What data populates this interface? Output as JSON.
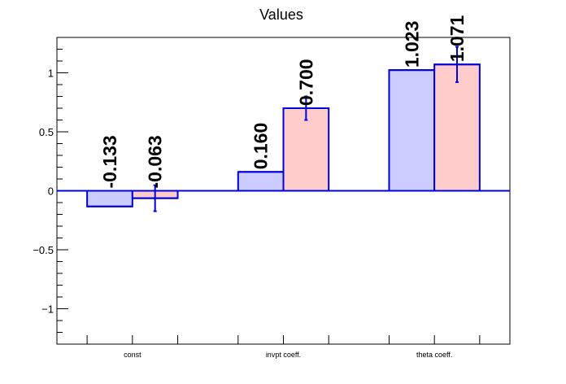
{
  "chart_data": {
    "type": "bar",
    "title": "Values",
    "xlabel": "",
    "ylabel": "",
    "categories": [
      "const",
      "invpt coeff.",
      "theta coeff."
    ],
    "series": [
      {
        "values": [
          -0.133,
          0.16,
          1.023
        ],
        "labels": [
          "-0.133",
          "0.160",
          "1.023"
        ],
        "errors": [
          null,
          null,
          null
        ],
        "fill": "#ccccff",
        "stroke": "#0000dd"
      },
      {
        "values": [
          -0.063,
          0.7,
          1.071
        ],
        "labels": [
          "-0.063",
          "0.700",
          "1.071"
        ],
        "errors": [
          0.11,
          0.1,
          0.15
        ],
        "fill": "#ffcccc",
        "stroke": "#0000dd"
      }
    ],
    "ylim": [
      -1.3,
      1.3
    ],
    "y_ticks": [
      -1,
      -0.5,
      0,
      0.5,
      1
    ],
    "y_tick_labels": [
      "−1",
      "−0.5",
      "0",
      "0.5",
      "1"
    ],
    "zero_line_color": "#0000dd",
    "error_bar_color": "#0000dd",
    "grid": false,
    "legend": "none"
  }
}
